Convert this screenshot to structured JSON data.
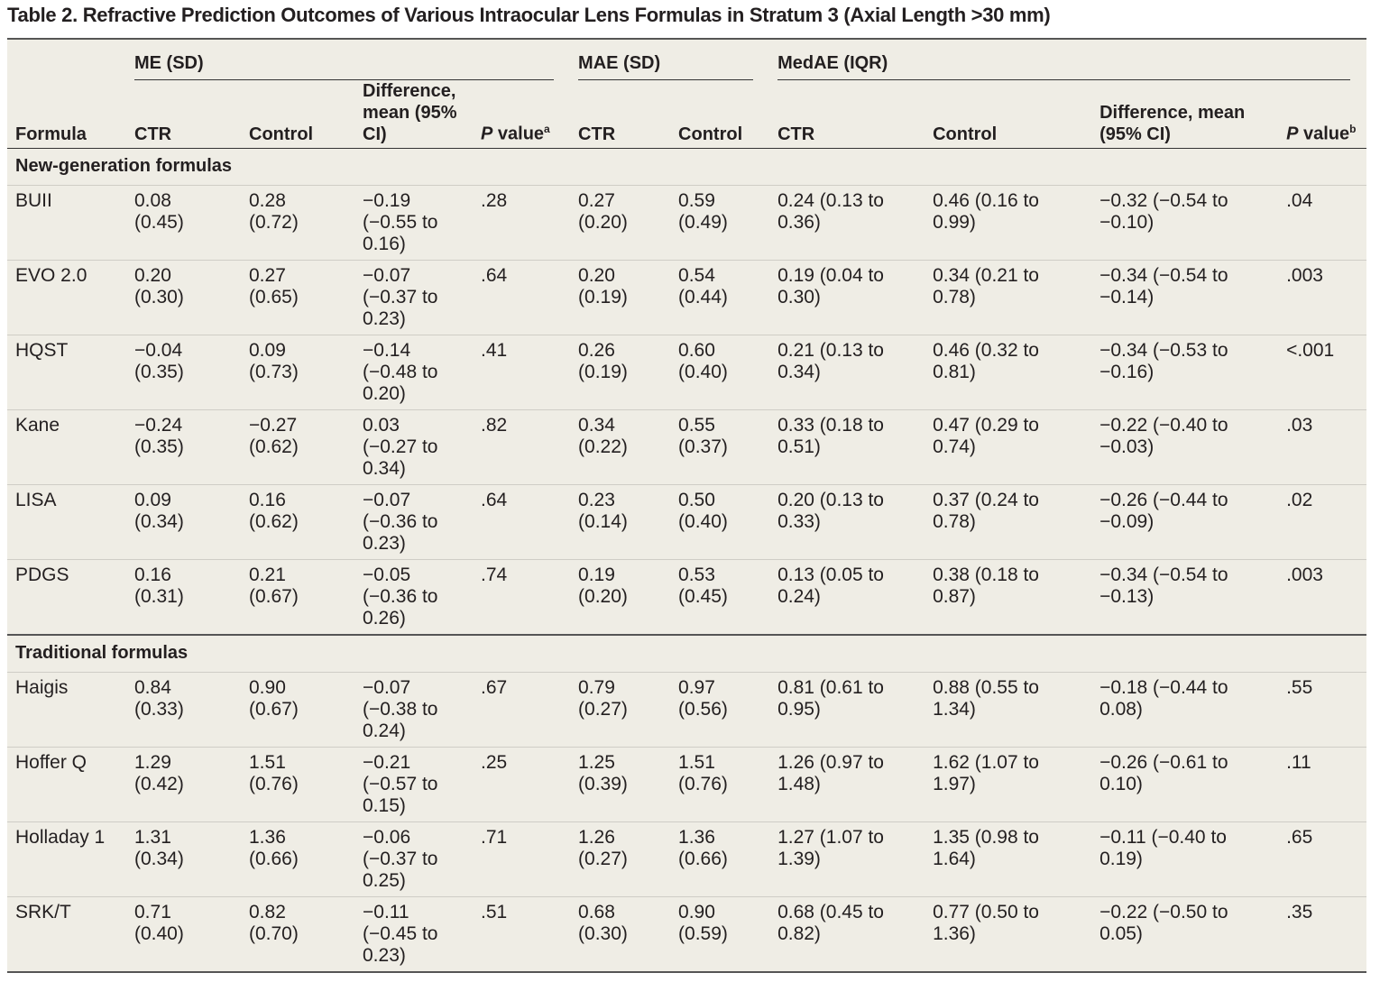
{
  "title": "Table 2. Refractive Prediction Outcomes of Various Intraocular Lens Formulas in Stratum 3 (Axial Length >30 mm)",
  "table": {
    "group_headers": [
      "ME (SD)",
      "MAE (SD)",
      "MedAE (IQR)"
    ],
    "columns": [
      {
        "text": "Formula"
      },
      {
        "text": "CTR"
      },
      {
        "text": "Control"
      },
      {
        "text": "Difference, mean (95% CI)"
      },
      {
        "italic": "P",
        "text": " value",
        "note": "a"
      },
      {
        "text": "CTR"
      },
      {
        "text": "Control"
      },
      {
        "text": "CTR"
      },
      {
        "text": "Control"
      },
      {
        "text": "Difference, mean (95% CI)"
      },
      {
        "italic": "P",
        "text": " value",
        "note": "b"
      }
    ],
    "sections": [
      {
        "label": "New-generation formulas",
        "rows": [
          [
            "BUII",
            "0.08 (0.45)",
            "0.28 (0.72)",
            "−0.19 (−0.55 to 0.16)",
            ".28",
            "0.27 (0.20)",
            "0.59 (0.49)",
            "0.24 (0.13 to 0.36)",
            "0.46 (0.16 to 0.99)",
            "−0.32 (−0.54 to −0.10)",
            ".04"
          ],
          [
            "EVO 2.0",
            "0.20 (0.30)",
            "0.27 (0.65)",
            "−0.07 (−0.37 to 0.23)",
            ".64",
            "0.20 (0.19)",
            "0.54 (0.44)",
            "0.19 (0.04 to 0.30)",
            "0.34 (0.21 to 0.78)",
            "−0.34 (−0.54 to −0.14)",
            ".003"
          ],
          [
            "HQST",
            "−0.04 (0.35)",
            "0.09 (0.73)",
            "−0.14 (−0.48 to 0.20)",
            ".41",
            "0.26 (0.19)",
            "0.60 (0.40)",
            "0.21 (0.13 to 0.34)",
            "0.46 (0.32 to 0.81)",
            "−0.34 (−0.53 to −0.16)",
            "<.001"
          ],
          [
            "Kane",
            "−0.24 (0.35)",
            "−0.27 (0.62)",
            "0.03 (−0.27 to 0.34)",
            ".82",
            "0.34 (0.22)",
            "0.55 (0.37)",
            "0.33 (0.18 to 0.51)",
            "0.47 (0.29 to 0.74)",
            "−0.22 (−0.40 to −0.03)",
            ".03"
          ],
          [
            "LISA",
            "0.09 (0.34)",
            "0.16 (0.62)",
            "−0.07 (−0.36 to 0.23)",
            ".64",
            "0.23 (0.14)",
            "0.50 (0.40)",
            "0.20 (0.13 to 0.33)",
            "0.37 (0.24 to 0.78)",
            "−0.26 (−0.44 to −0.09)",
            ".02"
          ],
          [
            "PDGS",
            "0.16 (0.31)",
            "0.21 (0.67)",
            "−0.05 (−0.36 to 0.26)",
            ".74",
            "0.19 (0.20)",
            "0.53 (0.45)",
            "0.13 (0.05 to 0.24)",
            "0.38 (0.18 to 0.87)",
            "−0.34 (−0.54 to −0.13)",
            ".003"
          ]
        ]
      },
      {
        "label": "Traditional formulas",
        "rows": [
          [
            "Haigis",
            "0.84 (0.33)",
            "0.90 (0.67)",
            "−0.07 (−0.38 to 0.24)",
            ".67",
            "0.79 (0.27)",
            "0.97 (0.56)",
            "0.81 (0.61 to 0.95)",
            "0.88 (0.55 to 1.34)",
            "−0.18 (−0.44 to 0.08)",
            ".55"
          ],
          [
            "Hoffer Q",
            "1.29 (0.42)",
            "1.51 (0.76)",
            "−0.21 (−0.57 to 0.15)",
            ".25",
            "1.25 (0.39)",
            "1.51 (0.76)",
            "1.26 (0.97 to 1.48)",
            "1.62 (1.07 to 1.97)",
            "−0.26 (−0.61 to 0.10)",
            ".11"
          ],
          [
            "Holladay 1",
            "1.31 (0.34)",
            "1.36 (0.66)",
            "−0.06 (−0.37 to 0.25)",
            ".71",
            "1.26 (0.27)",
            "1.36 (0.66)",
            "1.27 (1.07 to 1.39)",
            "1.35 (0.98 to 1.64)",
            "−0.11 (−0.40 to 0.19)",
            ".65"
          ],
          [
            "SRK/T",
            "0.71 (0.40)",
            "0.82 (0.70)",
            "−0.11 (−0.45 to 0.23)",
            ".51",
            "0.68 (0.30)",
            "0.90 (0.59)",
            "0.68 (0.45 to 0.82)",
            "0.77 (0.50 to 1.36)",
            "−0.22 (−0.50 to 0.05)",
            ".35"
          ]
        ]
      }
    ]
  }
}
